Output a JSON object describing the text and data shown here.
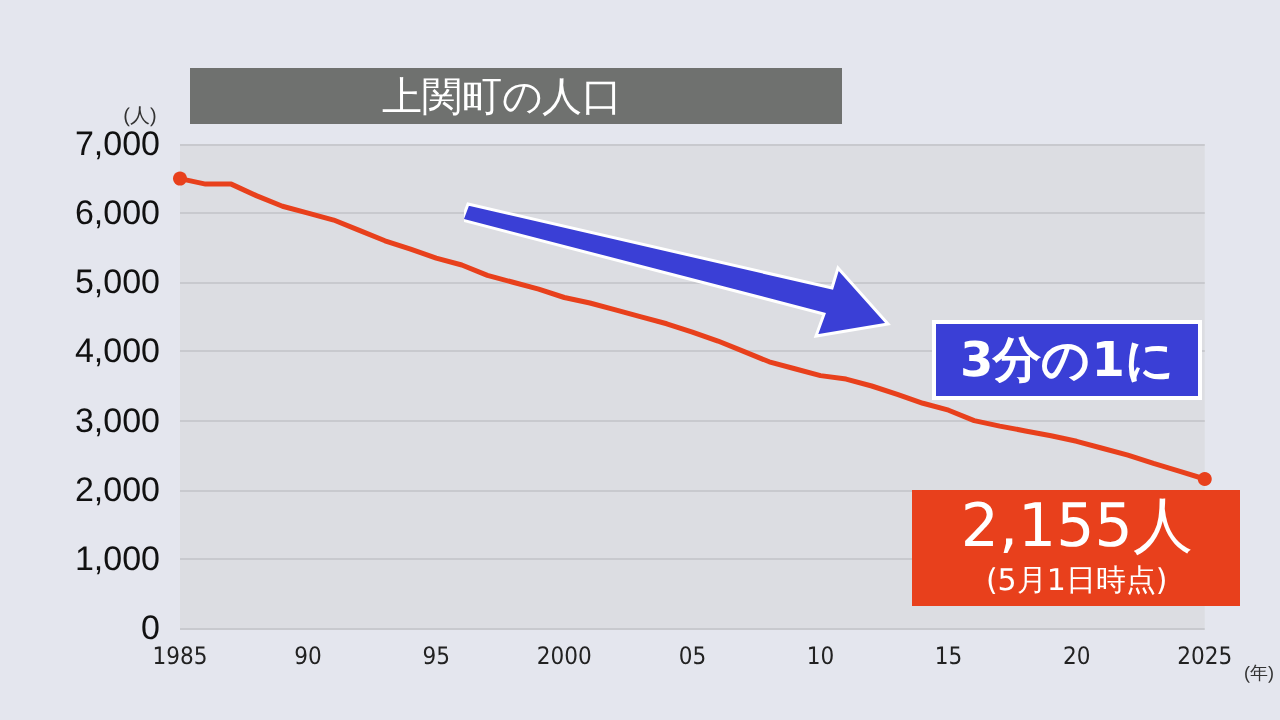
{
  "chart_data": {
    "type": "line",
    "title": "上関町の人口",
    "ylabel": "(人)",
    "xlabel": "(年)",
    "x": [
      1985,
      1986,
      1987,
      1988,
      1989,
      1990,
      1991,
      1992,
      1993,
      1994,
      1995,
      1996,
      1997,
      1998,
      1999,
      2000,
      2001,
      2002,
      2003,
      2004,
      2005,
      2006,
      2007,
      2008,
      2009,
      2010,
      2011,
      2012,
      2013,
      2014,
      2015,
      2016,
      2017,
      2018,
      2019,
      2020,
      2021,
      2022,
      2023,
      2024,
      2025
    ],
    "series": [
      {
        "color": "#e8401c",
        "values": [
          6500,
          6420,
          6420,
          6250,
          6100,
          6000,
          5900,
          5750,
          5600,
          5480,
          5350,
          5250,
          5100,
          5000,
          4900,
          4780,
          4700,
          4600,
          4500,
          4400,
          4280,
          4150,
          4000,
          3850,
          3750,
          3650,
          3600,
          3500,
          3380,
          3250,
          3150,
          3000,
          2920,
          2850,
          2780,
          2700,
          2600,
          2500,
          2380,
          2270,
          2155
        ]
      }
    ],
    "xlim": [
      1985,
      2025
    ],
    "xticks": [
      {
        "value": 1985,
        "label": "1985"
      },
      {
        "value": 1990,
        "label": "90"
      },
      {
        "value": 1995,
        "label": "95"
      },
      {
        "value": 2000,
        "label": "2000"
      },
      {
        "value": 2005,
        "label": "05"
      },
      {
        "value": 2010,
        "label": "10"
      },
      {
        "value": 2015,
        "label": "15"
      },
      {
        "value": 2020,
        "label": "20"
      },
      {
        "value": 2025,
        "label": "2025"
      }
    ],
    "ylim": [
      0,
      7000
    ],
    "yticks": [
      0,
      {
        "value": 1000,
        "label": "1,000"
      },
      {
        "value": 2000,
        "label": "2,000"
      },
      {
        "value": 3000,
        "label": "3,000"
      },
      {
        "value": 4000,
        "label": "4,000"
      },
      {
        "value": 5000,
        "label": "5,000"
      },
      {
        "value": 6000,
        "label": "6,000"
      },
      {
        "value": 7000,
        "label": "7,000"
      }
    ],
    "grid": "y",
    "marker": "none",
    "line_style": "solid",
    "annotations": [
      "3分の1に",
      {
        "text": "2,155人",
        "x": 2025,
        "y": 2155
      },
      "(5月1日時点)"
    ]
  }
}
